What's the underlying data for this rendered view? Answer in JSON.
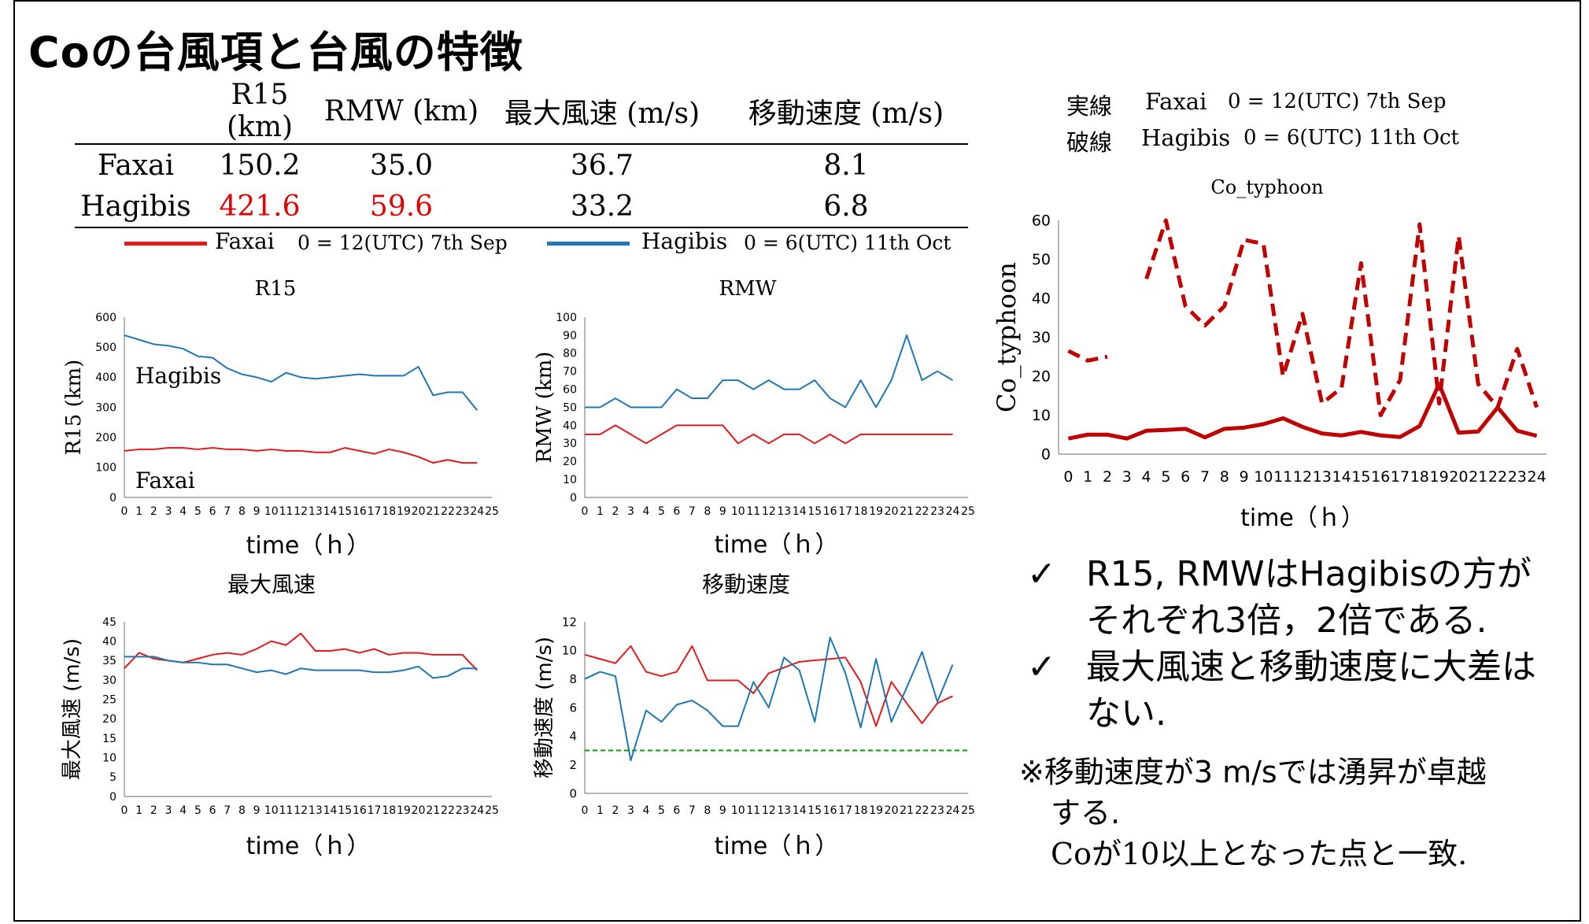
{
  "title": "Coの台風項と台風の特徴",
  "table": {
    "headers": [
      "",
      "R15 (km)",
      "RMW (km)",
      "最大風速 (m/s)",
      "移動速度 (m/s)"
    ],
    "rows": [
      {
        "name": "Faxai",
        "r15": "150.2",
        "rmw": "35.0",
        "vmax": "36.7",
        "speed": "8.1"
      },
      {
        "name": "Hagibis",
        "r15": "421.6",
        "rmw": "59.6",
        "vmax": "33.2",
        "speed": "6.8"
      }
    ]
  },
  "legend": {
    "faxai_label": "Faxai",
    "faxai_time": "0 = 12(UTC) 7th Sep",
    "hagibis_label": "Hagibis",
    "hagibis_time": "0 = 6(UTC) 11th Oct"
  },
  "line_style": {
    "solid_label": "実線",
    "solid_name": "Faxai",
    "solid_time": "0 = 12(UTC) 7th Sep",
    "dashed_label": "破線",
    "dashed_name": "Hagibis",
    "dashed_time": "0 = 6(UTC) 11th Oct"
  },
  "colors": {
    "faxai": "#e31a1c",
    "hagibis": "#1f77b4",
    "dark_red": "#c00000",
    "threshold": "#00a000"
  },
  "chart_data": [
    {
      "type": "line",
      "title": "R15",
      "xlabel": "time（ｈ）",
      "ylabel": "R15 (km)",
      "ylim": [
        0,
        600
      ],
      "yticks": [
        0,
        100,
        200,
        300,
        400,
        500,
        600
      ],
      "x": [
        0,
        1,
        2,
        3,
        4,
        5,
        6,
        7,
        8,
        9,
        10,
        11,
        12,
        13,
        14,
        15,
        16,
        17,
        18,
        19,
        20,
        21,
        22,
        23,
        24,
        25
      ],
      "annotations": [
        "Hagibis",
        "Faxai"
      ],
      "series": [
        {
          "name": "Hagibis",
          "color": "#1f77b4",
          "x": [
            0,
            1,
            2,
            3,
            4,
            5,
            6,
            7,
            8,
            9,
            10,
            11,
            12,
            13,
            14,
            15,
            16,
            17,
            18,
            19,
            20,
            21,
            22,
            23,
            24
          ],
          "values": [
            540,
            525,
            510,
            505,
            495,
            470,
            465,
            430,
            410,
            400,
            385,
            415,
            400,
            395,
            400,
            405,
            410,
            405,
            405,
            405,
            435,
            340,
            350,
            350,
            290
          ]
        },
        {
          "name": "Faxai",
          "color": "#e31a1c",
          "x": [
            0,
            1,
            2,
            3,
            4,
            5,
            6,
            7,
            8,
            9,
            10,
            11,
            12,
            13,
            14,
            15,
            16,
            17,
            18,
            19,
            20,
            21,
            22,
            23,
            24
          ],
          "values": [
            155,
            160,
            160,
            165,
            165,
            160,
            165,
            160,
            160,
            155,
            160,
            155,
            155,
            150,
            150,
            165,
            155,
            145,
            160,
            150,
            135,
            115,
            125,
            115,
            115
          ]
        }
      ]
    },
    {
      "type": "line",
      "title": "RMW",
      "xlabel": "time（ｈ）",
      "ylabel": "RMW (km)",
      "ylim": [
        0,
        100
      ],
      "yticks": [
        0,
        10,
        20,
        30,
        40,
        50,
        60,
        70,
        80,
        90,
        100
      ],
      "x": [
        0,
        1,
        2,
        3,
        4,
        5,
        6,
        7,
        8,
        9,
        10,
        11,
        12,
        13,
        14,
        15,
        16,
        17,
        18,
        19,
        20,
        21,
        22,
        23,
        24,
        25
      ],
      "series": [
        {
          "name": "Hagibis",
          "color": "#1f77b4",
          "x": [
            0,
            1,
            2,
            3,
            4,
            5,
            6,
            7,
            8,
            9,
            10,
            11,
            12,
            13,
            14,
            15,
            16,
            17,
            18,
            19,
            20,
            21,
            22,
            23,
            24
          ],
          "values": [
            50,
            50,
            55,
            50,
            50,
            50,
            60,
            55,
            55,
            65,
            65,
            60,
            65,
            60,
            60,
            65,
            55,
            50,
            65,
            50,
            65,
            90,
            65,
            70,
            65
          ]
        },
        {
          "name": "Faxai",
          "color": "#e31a1c",
          "x": [
            0,
            1,
            2,
            3,
            4,
            5,
            6,
            7,
            8,
            9,
            10,
            11,
            12,
            13,
            14,
            15,
            16,
            17,
            18,
            19,
            20,
            21,
            22,
            23,
            24
          ],
          "values": [
            35,
            35,
            40,
            35,
            30,
            35,
            40,
            40,
            40,
            40,
            30,
            35,
            30,
            35,
            35,
            30,
            35,
            30,
            35,
            35,
            35,
            35,
            35,
            35,
            35
          ]
        }
      ]
    },
    {
      "type": "line",
      "title": "最大風速",
      "xlabel": "time（ｈ）",
      "ylabel": "最大風速 (m/s)",
      "ylim": [
        0,
        45
      ],
      "yticks": [
        0,
        5,
        10,
        15,
        20,
        25,
        30,
        35,
        40,
        45
      ],
      "x": [
        0,
        1,
        2,
        3,
        4,
        5,
        6,
        7,
        8,
        9,
        10,
        11,
        12,
        13,
        14,
        15,
        16,
        17,
        18,
        19,
        20,
        21,
        22,
        23,
        24,
        25
      ],
      "series": [
        {
          "name": "Faxai",
          "color": "#e31a1c",
          "x": [
            0,
            1,
            2,
            3,
            4,
            5,
            6,
            7,
            8,
            9,
            10,
            11,
            12,
            13,
            14,
            15,
            16,
            17,
            18,
            19,
            20,
            21,
            22,
            23,
            24
          ],
          "values": [
            33,
            37,
            35.5,
            35,
            34.5,
            35.5,
            36.5,
            37,
            36.5,
            38,
            40,
            39,
            42,
            37.5,
            37.5,
            38,
            37,
            38,
            36.5,
            37,
            37,
            36.5,
            36.5,
            36.5,
            32.5
          ]
        },
        {
          "name": "Hagibis",
          "color": "#1f77b4",
          "x": [
            0,
            1,
            2,
            3,
            4,
            5,
            6,
            7,
            8,
            9,
            10,
            11,
            12,
            13,
            14,
            15,
            16,
            17,
            18,
            19,
            20,
            21,
            22,
            23,
            24
          ],
          "values": [
            36,
            36,
            36,
            35,
            34.5,
            34.5,
            34,
            34,
            33,
            32,
            32.5,
            31.5,
            33,
            32.5,
            32.5,
            32.5,
            32.5,
            32,
            32,
            32.5,
            33.5,
            30.5,
            31,
            33,
            33
          ]
        }
      ]
    },
    {
      "type": "line",
      "title": "移動速度",
      "xlabel": "time（ｈ）",
      "ylabel": "移動速度 (m/s)",
      "ylim": [
        0,
        12
      ],
      "yticks": [
        0,
        2,
        4,
        6,
        8,
        10,
        12
      ],
      "threshold": 3,
      "x": [
        0,
        1,
        2,
        3,
        4,
        5,
        6,
        7,
        8,
        9,
        10,
        11,
        12,
        13,
        14,
        15,
        16,
        17,
        18,
        19,
        20,
        21,
        22,
        23,
        24,
        25
      ],
      "series": [
        {
          "name": "Faxai",
          "color": "#e31a1c",
          "x": [
            0,
            1,
            2,
            3,
            4,
            5,
            6,
            7,
            8,
            9,
            10,
            11,
            12,
            13,
            14,
            15,
            16,
            17,
            18,
            19,
            20,
            21,
            22,
            23,
            24
          ],
          "values": [
            9.7,
            9.4,
            9.1,
            10.3,
            8.5,
            8.2,
            8.5,
            10.3,
            7.9,
            7.9,
            7.9,
            7.0,
            8.4,
            8.8,
            9.2,
            9.3,
            9.4,
            9.5,
            7.8,
            4.7,
            7.8,
            6.3,
            4.9,
            6.3,
            6.8
          ]
        },
        {
          "name": "Hagibis",
          "color": "#1f77b4",
          "x": [
            0,
            1,
            2,
            3,
            4,
            5,
            6,
            7,
            8,
            9,
            10,
            11,
            12,
            13,
            14,
            15,
            16,
            17,
            18,
            19,
            20,
            21,
            22,
            23,
            24
          ],
          "values": [
            8.0,
            8.5,
            8.2,
            2.3,
            5.8,
            5.0,
            6.2,
            6.5,
            5.8,
            4.7,
            4.7,
            7.8,
            6.0,
            9.5,
            8.6,
            5.0,
            10.9,
            8.4,
            4.6,
            9.4,
            5.0,
            7.4,
            9.9,
            6.4,
            9.0
          ]
        }
      ]
    },
    {
      "type": "line",
      "title": "Co_typhoon",
      "xlabel": "time（ｈ）",
      "ylabel": "Co_typhoon",
      "ylim": [
        0,
        60
      ],
      "yticks": [
        0,
        10,
        20,
        30,
        40,
        50,
        60
      ],
      "x": [
        0,
        1,
        2,
        3,
        4,
        5,
        6,
        7,
        8,
        9,
        10,
        11,
        12,
        13,
        14,
        15,
        16,
        17,
        18,
        19,
        20,
        21,
        22,
        23,
        24
      ],
      "series": [
        {
          "name": "Faxai",
          "style": "solid",
          "color": "#c00000",
          "x": [
            0,
            1,
            2,
            3,
            4,
            5,
            6,
            7,
            8,
            9,
            10,
            11,
            12,
            13,
            14,
            15,
            16,
            17,
            18,
            19,
            20,
            21,
            22,
            23,
            24
          ],
          "values": [
            4,
            5,
            5,
            4,
            6,
            6.2,
            6.5,
            4.3,
            6.5,
            6.8,
            7.7,
            9.2,
            7,
            5.3,
            4.8,
            5.7,
            4.8,
            4.4,
            7.2,
            18,
            5.5,
            5.8,
            12,
            6,
            4.7
          ]
        },
        {
          "name": "Hagibis",
          "style": "dashed",
          "color": "#c00000",
          "x": [
            0,
            1,
            2,
            4,
            5,
            6,
            7,
            8,
            9,
            10,
            11,
            12,
            13,
            14,
            15,
            16,
            17,
            18,
            19,
            20,
            21,
            22,
            23,
            24
          ],
          "values": [
            26.5,
            24,
            25,
            45,
            60,
            38,
            33,
            38,
            55,
            54,
            20,
            36,
            13,
            17,
            49,
            10,
            19,
            59,
            13,
            56,
            18,
            12,
            27,
            12
          ]
        }
      ]
    }
  ],
  "bullets": [
    {
      "check": "✓",
      "text": "R15, RMWはHagibisの方がそれぞれ3倍，2倍である."
    },
    {
      "check": "✓",
      "text": "最大風速と移動速度に大差はない."
    }
  ],
  "note": {
    "line1": "※移動速度が3 m/sでは湧昇が卓越",
    "line2": "する.",
    "line3": "Coが10以上となった点と一致."
  }
}
